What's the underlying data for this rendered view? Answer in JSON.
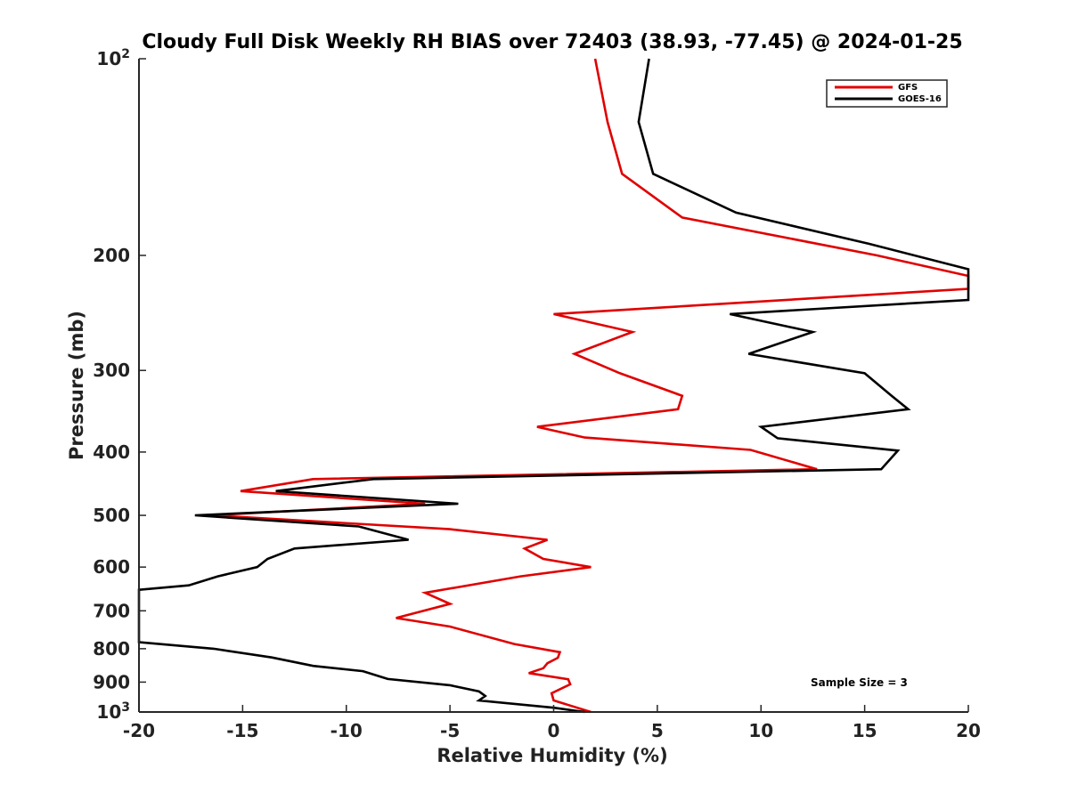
{
  "chart_data": {
    "type": "line",
    "title": "Cloudy Full Disk Weekly RH BIAS over 72403 (38.93, -77.45) @ 2024-01-25",
    "xlabel": "Relative Humidity (%)",
    "ylabel": "Pressure (mb)",
    "xlim": [
      -20,
      20
    ],
    "ylim": [
      100,
      1000
    ],
    "y_scale": "log",
    "y_reversed": true,
    "grid": false,
    "legend_position": "top-right",
    "x_ticks": [
      -20,
      -15,
      -10,
      -5,
      0,
      5,
      10,
      15,
      20
    ],
    "x_tick_labels": [
      "-20",
      "-15",
      "-10",
      "-5",
      "0",
      "5",
      "10",
      "15",
      "20"
    ],
    "y_ticks": [
      {
        "value": 100,
        "label": "10",
        "sup": "2"
      },
      {
        "value": 200,
        "label": "200",
        "sup": ""
      },
      {
        "value": 300,
        "label": "300",
        "sup": ""
      },
      {
        "value": 400,
        "label": "400",
        "sup": ""
      },
      {
        "value": 500,
        "label": "500",
        "sup": ""
      },
      {
        "value": 600,
        "label": "600",
        "sup": ""
      },
      {
        "value": 700,
        "label": "700",
        "sup": ""
      },
      {
        "value": 800,
        "label": "800",
        "sup": ""
      },
      {
        "value": 900,
        "label": "900",
        "sup": ""
      },
      {
        "value": 1000,
        "label": "10",
        "sup": "3"
      }
    ],
    "annotation": "Sample Size = 3",
    "series": [
      {
        "name": "GFS",
        "color": "#e00000",
        "points": [
          [
            2.0,
            100
          ],
          [
            2.6,
            125
          ],
          [
            3.3,
            150
          ],
          [
            6.2,
            175
          ],
          [
            15.6,
            200
          ],
          [
            20.0,
            215
          ],
          [
            20.0,
            225
          ],
          [
            0.0,
            246
          ],
          [
            3.8,
            262
          ],
          [
            1.0,
            283
          ],
          [
            3.2,
            303
          ],
          [
            6.2,
            328
          ],
          [
            6.0,
            344
          ],
          [
            -0.8,
            366
          ],
          [
            1.5,
            380
          ],
          [
            9.5,
            397
          ],
          [
            12.7,
            425
          ],
          [
            -11.6,
            440
          ],
          [
            -15.1,
            459
          ],
          [
            -6.2,
            480
          ],
          [
            -16.5,
            500
          ],
          [
            -5.0,
            525
          ],
          [
            -0.3,
            545
          ],
          [
            -1.4,
            562
          ],
          [
            -0.5,
            583
          ],
          [
            1.8,
            600
          ],
          [
            -1.6,
            620
          ],
          [
            -6.2,
            657
          ],
          [
            -5.0,
            683
          ],
          [
            -7.6,
            718
          ],
          [
            -5.0,
            740
          ],
          [
            -1.9,
            787
          ],
          [
            0.3,
            810
          ],
          [
            0.2,
            826
          ],
          [
            -0.3,
            842
          ],
          [
            -0.5,
            857
          ],
          [
            -1.2,
            872
          ],
          [
            0.7,
            891
          ],
          [
            0.8,
            907
          ],
          [
            -0.1,
            936
          ],
          [
            0.0,
            960
          ],
          [
            1.8,
            1000
          ]
        ]
      },
      {
        "name": "GOES-16",
        "color": "#000000",
        "points": [
          [
            4.6,
            100
          ],
          [
            4.1,
            125
          ],
          [
            4.8,
            150
          ],
          [
            8.8,
            172
          ],
          [
            15.2,
            192
          ],
          [
            20.0,
            210
          ],
          [
            20.0,
            234
          ],
          [
            8.5,
            246
          ],
          [
            12.5,
            262
          ],
          [
            9.4,
            283
          ],
          [
            15.0,
            303
          ],
          [
            16.3,
            328
          ],
          [
            17.1,
            344
          ],
          [
            10.0,
            366
          ],
          [
            10.8,
            381
          ],
          [
            16.6,
            398
          ],
          [
            15.8,
            425
          ],
          [
            -8.7,
            440
          ],
          [
            -13.4,
            459
          ],
          [
            -4.6,
            480
          ],
          [
            -17.3,
            500
          ],
          [
            -9.4,
            520
          ],
          [
            -7.0,
            545
          ],
          [
            -12.5,
            562
          ],
          [
            -13.8,
            583
          ],
          [
            -14.3,
            600
          ],
          [
            -16.2,
            620
          ],
          [
            -17.6,
            640
          ],
          [
            -20.0,
            650
          ],
          [
            -20.0,
            782
          ],
          [
            -16.4,
            800
          ],
          [
            -13.6,
            825
          ],
          [
            -11.6,
            850
          ],
          [
            -9.2,
            866
          ],
          [
            -8.0,
            890
          ],
          [
            -5.0,
            910
          ],
          [
            -3.6,
            930
          ],
          [
            -3.3,
            945
          ],
          [
            -3.6,
            960
          ],
          [
            0.0,
            985
          ],
          [
            1.5,
            1000
          ]
        ]
      }
    ]
  }
}
